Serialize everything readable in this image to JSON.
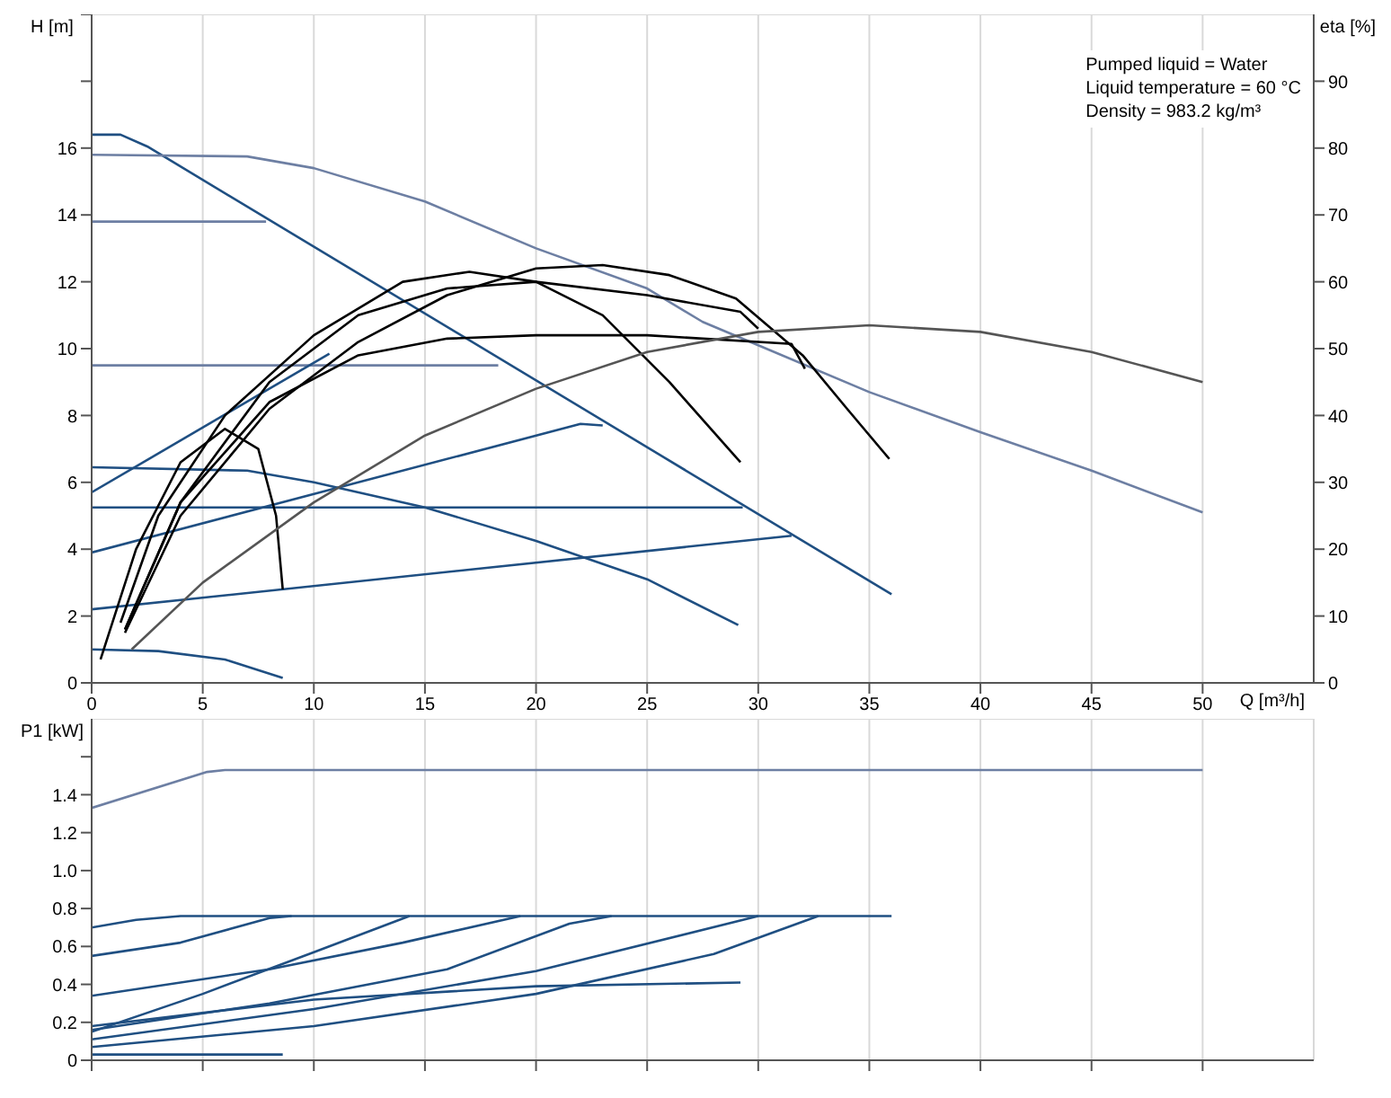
{
  "chart_data": [
    {
      "type": "line",
      "ylabel": "H [m]",
      "y2label": "eta [%]",
      "xlabel": "Q [m³/h]",
      "xlim": [
        0,
        55
      ],
      "xticks": [
        0,
        5,
        10,
        15,
        20,
        25,
        30,
        35,
        40,
        45,
        50
      ],
      "ylim": [
        0,
        20
      ],
      "yticks": [
        0,
        2,
        4,
        6,
        8,
        10,
        12,
        14,
        16,
        {
          "value": 18,
          "label": null
        },
        {
          "value": 20,
          "label": null
        }
      ],
      "y2lim": [
        0,
        100
      ],
      "y2ticks": [
        0,
        10,
        20,
        30,
        40,
        50,
        60,
        70,
        80,
        90
      ],
      "grid": true,
      "annotations": [
        "Pumped liquid = Water",
        "Liquid temperature = 60 °C",
        "Density = 983.2 kg/m³"
      ],
      "series": [
        {
          "color": "#1f4f82",
          "x": [
            0,
            1.3,
            2.5,
            36
          ],
          "values": [
            16.4,
            16.4,
            16.05,
            2.65
          ]
        },
        {
          "color": "#6d7fa3",
          "x": [
            0,
            7,
            10,
            15,
            20,
            25,
            27.5,
            30,
            35,
            40,
            45,
            50
          ],
          "values": [
            15.8,
            15.75,
            15.4,
            14.4,
            13,
            11.8,
            10.8,
            10.1,
            8.7,
            7.5,
            6.35,
            5.1
          ]
        },
        {
          "color": "#6d7fa3",
          "x": [
            0,
            7.85
          ],
          "values": [
            13.8,
            13.8
          ]
        },
        {
          "color": "#6d7fa3",
          "x": [
            0,
            18.3
          ],
          "values": [
            9.5,
            9.5
          ]
        },
        {
          "color": "#1f4f82",
          "x": [
            0,
            29.3
          ],
          "values": [
            5.25,
            5.25
          ]
        },
        {
          "color": "#1f4f82",
          "x": [
            0,
            10.7
          ],
          "values": [
            5.7,
            9.85
          ]
        },
        {
          "color": "#1f4f82",
          "x": [
            0,
            22,
            23
          ],
          "values": [
            3.9,
            7.75,
            7.7
          ]
        },
        {
          "color": "#1f4f82",
          "x": [
            0,
            31.5
          ],
          "values": [
            2.2,
            4.4
          ]
        },
        {
          "color": "#1f4f82",
          "x": [
            0,
            7,
            10,
            15,
            20,
            25,
            29.1
          ],
          "values": [
            6.45,
            6.35,
            6.0,
            5.25,
            4.25,
            3.1,
            1.73
          ]
        },
        {
          "color": "#1f4f82",
          "x": [
            0,
            3,
            6,
            8.6
          ],
          "values": [
            1,
            0.95,
            0.7,
            0.15
          ]
        },
        {
          "color": "#000000",
          "axis": "y2",
          "x": [
            0.4,
            2,
            4,
            6,
            7.5,
            8.3,
            8.6
          ],
          "values": [
            3.5,
            20,
            33,
            38,
            35,
            25,
            14
          ]
        },
        {
          "color": "#000000",
          "axis": "y2",
          "x": [
            1.3,
            3,
            6,
            10,
            14,
            17,
            20,
            23,
            26,
            29.2
          ],
          "values": [
            9,
            25,
            40,
            52,
            60,
            61.5,
            60,
            55,
            45,
            33
          ]
        },
        {
          "color": "#000000",
          "axis": "y2",
          "x": [
            1.5,
            4,
            8,
            12,
            16,
            20,
            25,
            31.5,
            32.1
          ],
          "values": [
            8,
            27,
            42,
            49,
            51.5,
            52,
            52,
            50.7,
            47
          ]
        },
        {
          "color": "#000000",
          "axis": "y2",
          "x": [
            1.5,
            4,
            8,
            12,
            16,
            20,
            25,
            29.2,
            30
          ],
          "values": [
            8,
            27,
            45,
            55,
            59,
            60,
            58,
            55.5,
            53
          ]
        },
        {
          "color": "#000000",
          "axis": "y2",
          "x": [
            1.5,
            4,
            8,
            12,
            16,
            20,
            23,
            26,
            29,
            32,
            34,
            35.9
          ],
          "values": [
            7.5,
            25,
            41,
            51,
            58,
            62,
            62.5,
            61,
            57.5,
            49,
            41,
            33.5
          ]
        },
        {
          "color": "#555555",
          "axis": "y2",
          "x": [
            1.8,
            5,
            10,
            15,
            20,
            25,
            30,
            35,
            40,
            45,
            50
          ],
          "values": [
            5,
            15,
            27,
            37,
            44,
            49.5,
            52.5,
            53.5,
            52.5,
            49.5,
            45
          ]
        }
      ]
    },
    {
      "type": "line",
      "ylabel": "P1 [kW]",
      "xlim": [
        0,
        55
      ],
      "xticks": [
        0,
        5,
        10,
        15,
        20,
        25,
        30,
        35,
        40,
        45,
        50
      ],
      "ylim": [
        0,
        1.8
      ],
      "yticks": [
        0,
        0.2,
        0.4,
        0.6,
        0.8,
        {
          "value": 1,
          "label": "1.0"
        },
        1.2,
        1.4,
        {
          "value": 1.6,
          "label": null
        }
      ],
      "tick_labels": "y",
      "grid": true,
      "series": [
        {
          "color": "#6d7fa3",
          "x": [
            0,
            5.2,
            6,
            50
          ],
          "values": [
            1.33,
            1.52,
            1.53,
            1.53
          ]
        },
        {
          "color": "#1f4f82",
          "x": [
            0,
            2,
            4,
            36
          ],
          "values": [
            0.7,
            0.74,
            0.76,
            0.76
          ]
        },
        {
          "color": "#1f4f82",
          "x": [
            0,
            4,
            8,
            9
          ],
          "values": [
            0.55,
            0.62,
            0.75,
            0.76
          ]
        },
        {
          "color": "#1f4f82",
          "x": [
            0,
            8,
            14,
            19.3
          ],
          "values": [
            0.34,
            0.48,
            0.62,
            0.76
          ]
        },
        {
          "color": "#1f4f82",
          "x": [
            0,
            5,
            10,
            14.3
          ],
          "values": [
            0.15,
            0.35,
            0.57,
            0.76
          ]
        },
        {
          "color": "#1f4f82",
          "x": [
            0,
            8,
            16,
            21.5,
            23.4
          ],
          "values": [
            0.16,
            0.3,
            0.48,
            0.72,
            0.76
          ]
        },
        {
          "color": "#1f4f82",
          "x": [
            0,
            10,
            20,
            30
          ],
          "values": [
            0.11,
            0.27,
            0.47,
            0.76
          ]
        },
        {
          "color": "#1f4f82",
          "x": [
            0,
            10,
            20,
            28,
            32.7
          ],
          "values": [
            0.07,
            0.18,
            0.35,
            0.56,
            0.76
          ]
        },
        {
          "color": "#1f4f82",
          "x": [
            0,
            10,
            20,
            29.2
          ],
          "values": [
            0.18,
            0.32,
            0.39,
            0.41
          ]
        },
        {
          "color": "#1f4f82",
          "x": [
            0,
            8.6
          ],
          "values": [
            0.03,
            0.03
          ]
        }
      ]
    }
  ]
}
